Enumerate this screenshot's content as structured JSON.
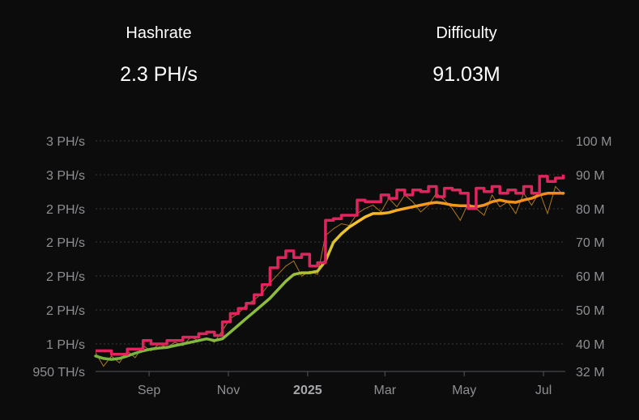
{
  "stats": {
    "hashrate_label": "Hashrate",
    "hashrate_value": "2.3 PH/s",
    "difficulty_label": "Difficulty",
    "difficulty_value": "91.03M"
  },
  "chart_data": {
    "type": "line",
    "left_axis": {
      "ticks": [
        "950 TH/s",
        "1 PH/s",
        "2 PH/s",
        "2 PH/s",
        "2 PH/s",
        "2 PH/s",
        "3 PH/s",
        "3 PH/s"
      ]
    },
    "right_axis": {
      "ticks": [
        "32 M",
        "40 M",
        "50 M",
        "60 M",
        "70 M",
        "80 M",
        "90 M",
        "100 M"
      ],
      "ylim": [
        32,
        100
      ]
    },
    "x_ticks": [
      {
        "label": "Sep",
        "month": 1.35,
        "bold": false
      },
      {
        "label": "Nov",
        "month": 3.35,
        "bold": false
      },
      {
        "label": "2025",
        "month": 5.35,
        "bold": true
      },
      {
        "label": "Mar",
        "month": 7.3,
        "bold": false
      },
      {
        "label": "May",
        "month": 9.3,
        "bold": false
      },
      {
        "label": "Jul",
        "month": 11.3,
        "bold": false
      }
    ],
    "x_range": [
      0,
      11.85
    ],
    "grid": true,
    "series": [
      {
        "role": "hashrate-daily",
        "color": "#c98a20",
        "x": [
          0.0,
          0.2,
          0.4,
          0.6,
          0.8,
          1.0,
          1.2,
          1.4,
          1.6,
          1.8,
          2.0,
          2.2,
          2.4,
          2.6,
          2.8,
          3.0,
          3.2,
          3.4,
          3.6,
          3.8,
          4.0,
          4.2,
          4.4,
          4.6,
          4.8,
          5.0,
          5.2,
          5.4,
          5.6,
          5.8,
          6.0,
          6.2,
          6.4,
          6.6,
          6.8,
          7.0,
          7.2,
          7.4,
          7.6,
          7.8,
          8.0,
          8.2,
          8.4,
          8.6,
          8.8,
          9.0,
          9.2,
          9.4,
          9.6,
          9.8,
          10.0,
          10.2,
          10.4,
          10.6,
          10.8,
          11.0,
          11.2,
          11.4,
          11.6,
          11.8
        ],
        "y": [
          37.5,
          33.5,
          36.5,
          34.5,
          38.0,
          36.0,
          39.5,
          38.0,
          40.0,
          39.0,
          40.5,
          39.5,
          42.0,
          41.0,
          41.5,
          40.5,
          44.0,
          47.5,
          49.0,
          51.5,
          53.0,
          55.0,
          58.0,
          60.5,
          63.0,
          64.5,
          60.0,
          61.5,
          60.5,
          72.0,
          74.0,
          75.5,
          75.0,
          78.5,
          80.0,
          81.0,
          79.0,
          83.0,
          80.5,
          84.0,
          82.0,
          79.0,
          81.0,
          84.5,
          82.5,
          80.0,
          76.5,
          81.5,
          80.0,
          78.0,
          84.0,
          80.5,
          82.0,
          78.5,
          84.5,
          81.0,
          85.0,
          78.5,
          86.5,
          84.0
        ]
      },
      {
        "role": "hashrate-average",
        "colors": [
          "#76b041",
          "#f7c52b",
          "#f08a1c"
        ],
        "x": [
          0.0,
          0.2,
          0.4,
          0.6,
          0.8,
          1.0,
          1.2,
          1.4,
          1.6,
          1.8,
          2.0,
          2.2,
          2.4,
          2.6,
          2.8,
          3.0,
          3.2,
          3.4,
          3.6,
          3.8,
          4.0,
          4.2,
          4.4,
          4.6,
          4.8,
          5.0,
          5.2,
          5.4,
          5.6,
          5.8,
          6.0,
          6.2,
          6.4,
          6.6,
          6.8,
          7.0,
          7.2,
          7.4,
          7.6,
          7.8,
          8.0,
          8.2,
          8.4,
          8.6,
          8.8,
          9.0,
          9.2,
          9.4,
          9.6,
          9.8,
          10.0,
          10.2,
          10.4,
          10.6,
          10.8,
          11.0,
          11.2,
          11.4,
          11.6,
          11.8
        ],
        "y": [
          36.5,
          35.8,
          35.5,
          35.8,
          36.5,
          37.3,
          38.0,
          38.5,
          38.8,
          39.0,
          39.5,
          40.0,
          40.5,
          41.0,
          41.5,
          41.0,
          41.5,
          43.5,
          45.5,
          47.5,
          49.5,
          51.5,
          53.5,
          56.0,
          58.5,
          60.5,
          61.0,
          61.0,
          61.5,
          64.5,
          70.0,
          72.5,
          74.5,
          76.0,
          77.5,
          78.5,
          78.5,
          78.8,
          79.5,
          80.0,
          80.5,
          81.0,
          81.5,
          81.8,
          81.5,
          81.0,
          80.8,
          80.8,
          80.5,
          81.0,
          82.0,
          82.5,
          82.0,
          81.8,
          82.5,
          83.0,
          84.0,
          84.5,
          84.5,
          84.5
        ]
      },
      {
        "role": "difficulty",
        "color": "#e0245e",
        "x": [
          0.0,
          0.2,
          0.4,
          0.6,
          0.8,
          1.0,
          1.2,
          1.4,
          1.6,
          1.8,
          2.0,
          2.2,
          2.4,
          2.6,
          2.8,
          3.0,
          3.2,
          3.4,
          3.6,
          3.8,
          4.0,
          4.2,
          4.4,
          4.6,
          4.8,
          5.0,
          5.2,
          5.4,
          5.6,
          5.8,
          6.0,
          6.2,
          6.4,
          6.6,
          6.8,
          7.0,
          7.2,
          7.4,
          7.6,
          7.8,
          8.0,
          8.2,
          8.4,
          8.6,
          8.8,
          9.0,
          9.2,
          9.4,
          9.6,
          9.8,
          10.0,
          10.2,
          10.4,
          10.6,
          10.8,
          11.0,
          11.2,
          11.4,
          11.6,
          11.8
        ],
        "y": [
          38.0,
          38.0,
          37.0,
          37.0,
          38.5,
          38.5,
          41.0,
          40.0,
          40.0,
          41.0,
          41.0,
          42.0,
          42.0,
          43.0,
          43.5,
          42.5,
          46.5,
          49.0,
          50.5,
          52.0,
          54.5,
          57.5,
          62.5,
          65.5,
          67.5,
          65.5,
          66.5,
          63.0,
          64.0,
          76.5,
          77.0,
          78.0,
          78.0,
          82.5,
          82.0,
          82.0,
          84.0,
          83.0,
          85.5,
          84.0,
          85.5,
          85.0,
          86.5,
          83.5,
          86.0,
          85.5,
          84.5,
          80.0,
          86.0,
          85.0,
          86.5,
          84.5,
          85.5,
          84.5,
          86.5,
          84.5,
          89.5,
          88.0,
          89.0,
          90.0
        ]
      }
    ]
  },
  "colors": {
    "background": "#0c0c0d",
    "grid": "#3a3a3d",
    "axis_text": "#8e8e93"
  }
}
